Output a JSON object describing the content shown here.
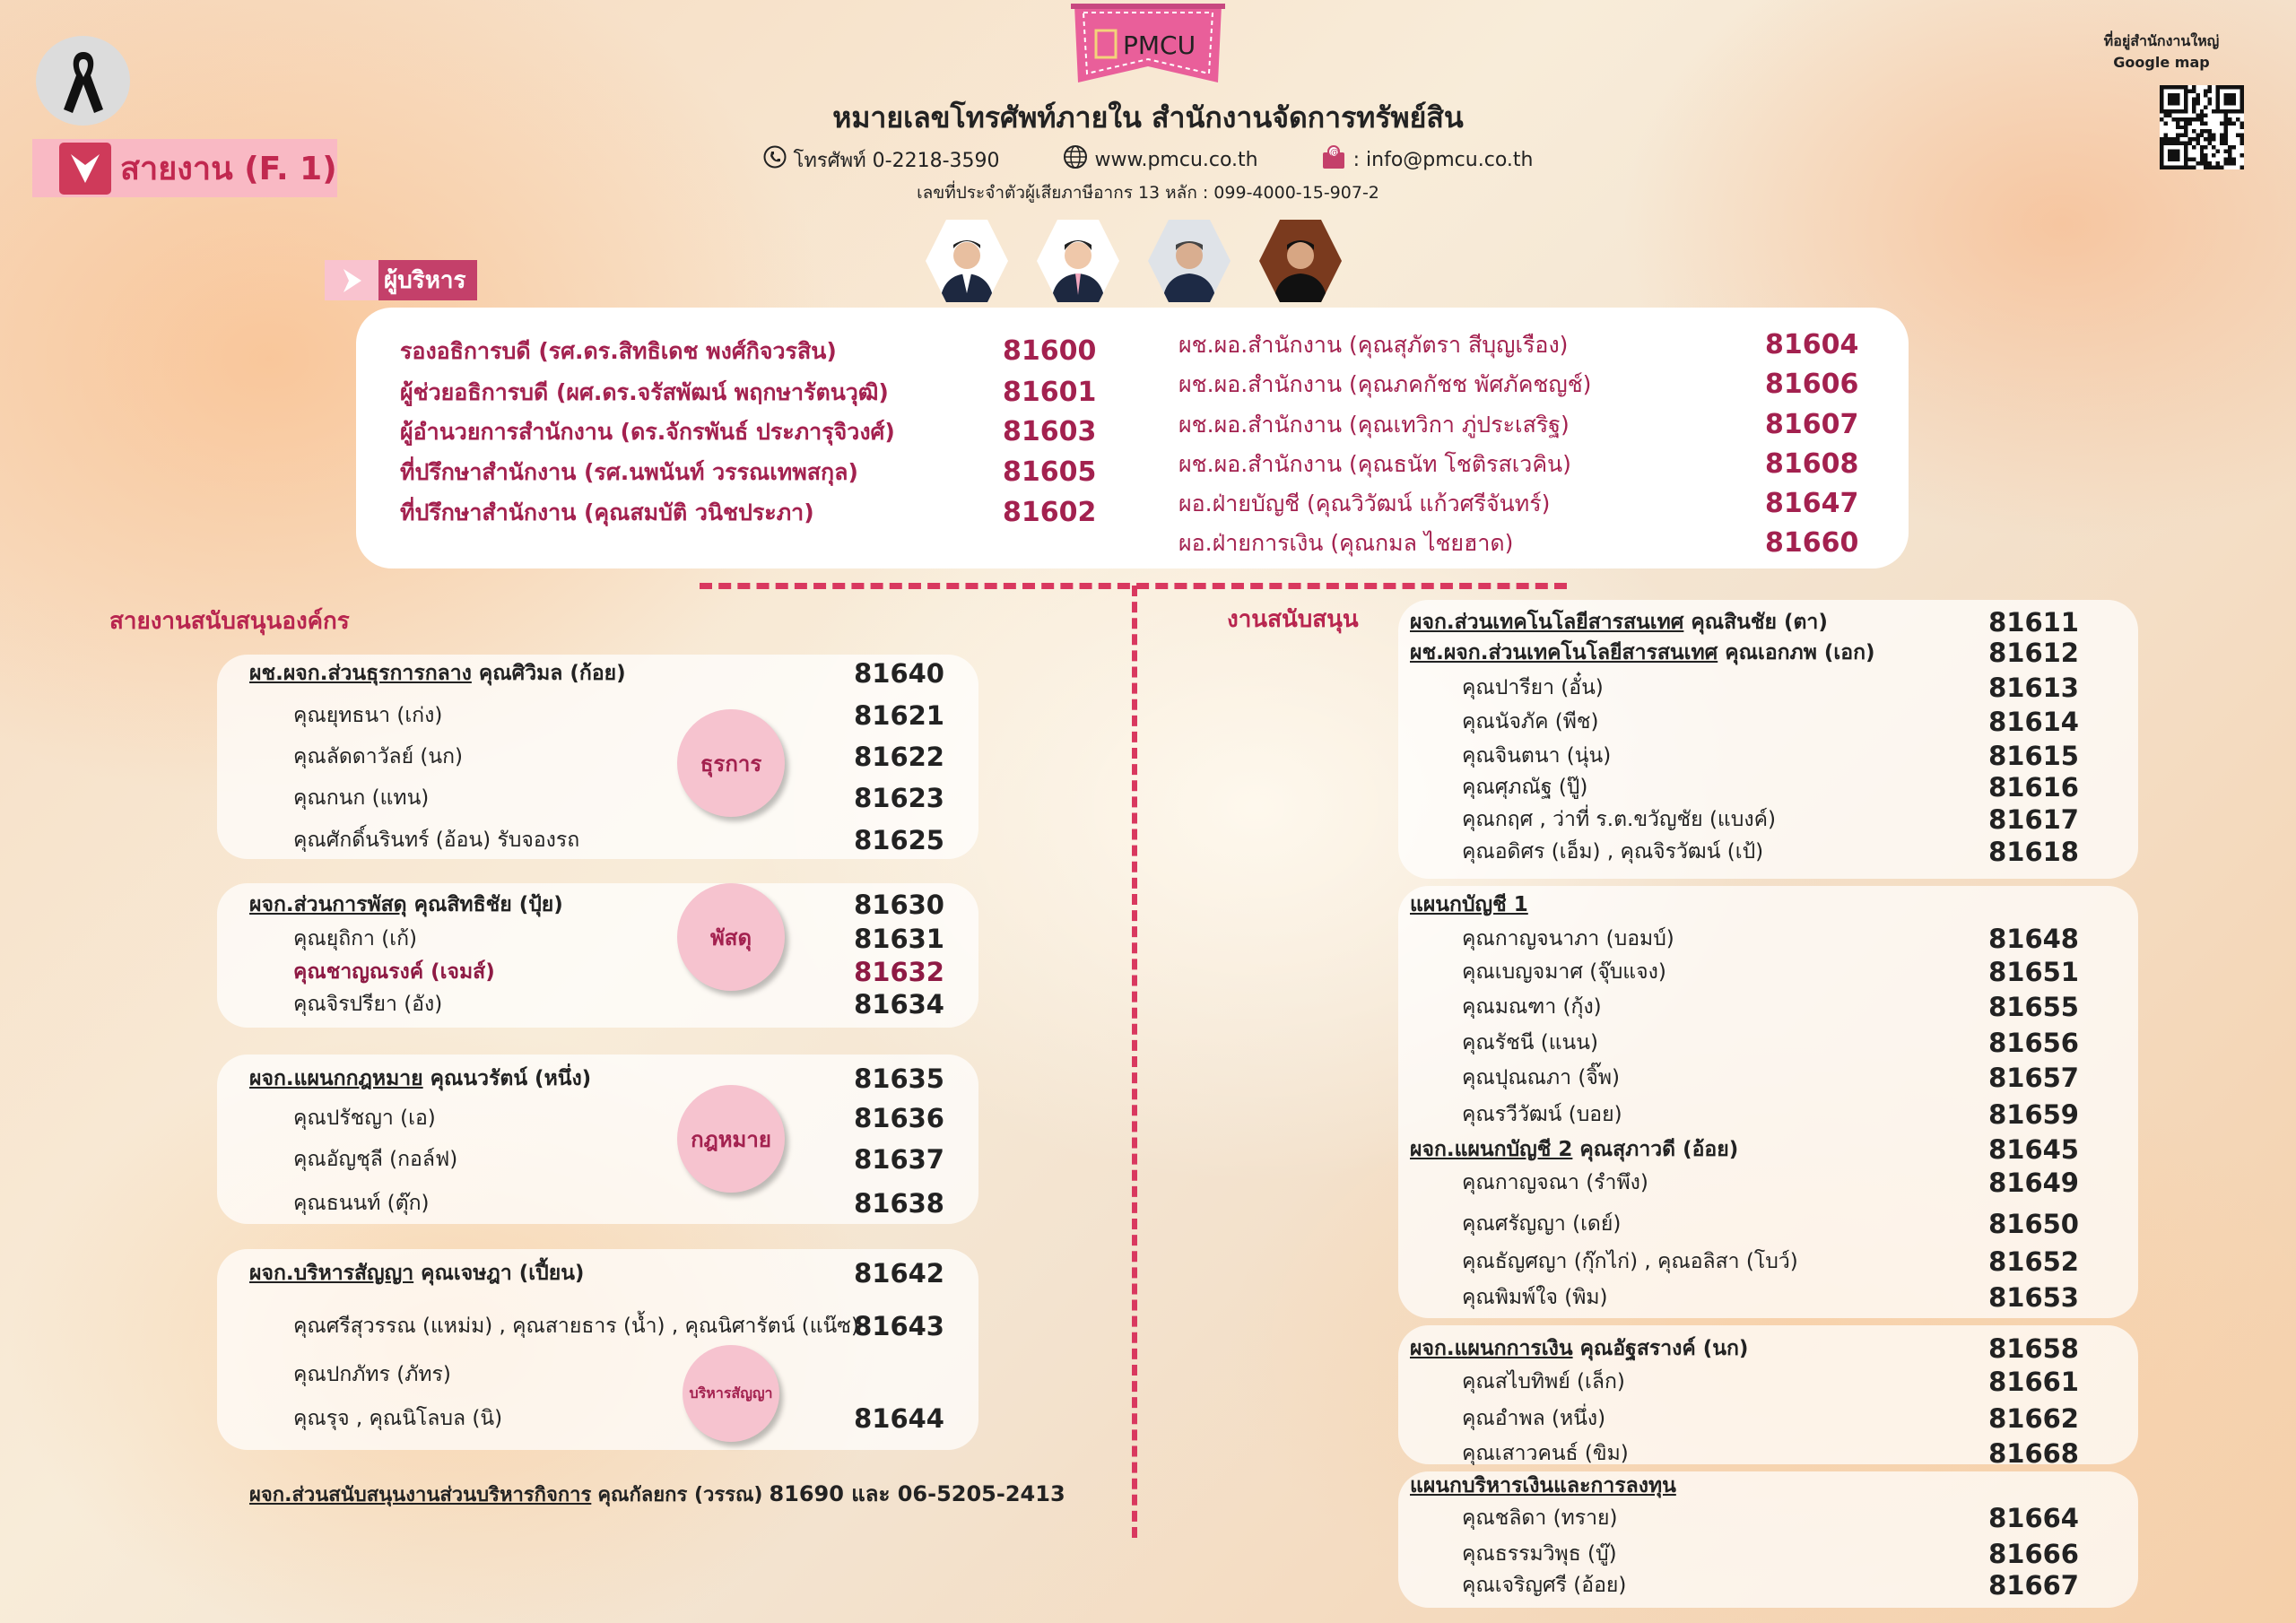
{
  "header": {
    "badge": "สายงาน (F. 1)",
    "logo": "PMCU",
    "title": "หมายเลขโทรศัพท์ภายใน สำนักงานจัดการทรัพย์สิน",
    "phone": "โทรศัพท์ 0-2218-3590",
    "website": "www.pmcu.co.th",
    "email": ": info@pmcu.co.th",
    "tax_id": "เลขที่ประจำตัวผู้เสียภาษีอากร 13 หลัก : 099-4000-15-907-2",
    "qr_label_1": "ที่อยู่สำนักงานใหญ่",
    "qr_label_2": "Google map",
    "icons": [
      "mourning-ribbon-icon",
      "chevron-down-icon",
      "phone-icon",
      "globe-icon",
      "email-icon",
      "qr-code"
    ],
    "colors": {
      "accent": "#a3214f",
      "pink": "#f6c3cf",
      "dash": "#d9385f"
    }
  },
  "executives": {
    "label": "ผู้บริหาร",
    "photo_count": 4,
    "left": [
      {
        "name": "รองอธิการบดี (รศ.ดร.สิทธิเดช พงศ์กิจวรสิน)",
        "ext": "81600"
      },
      {
        "name": "ผู้ช่วยอธิการบดี (ผศ.ดร.จรัสพัฒน์ พฤกษารัตนวุฒิ)",
        "ext": "81601"
      },
      {
        "name": "ผู้อำนวยการสำนักงาน (ดร.จักรพันธ์ ประภารุจิวงศ์)",
        "ext": "81603"
      },
      {
        "name": "ที่ปรึกษาสำนักงาน (รศ.นพนันท์ วรรณเทพสกุล)",
        "ext": "81605"
      },
      {
        "name": "ที่ปรึกษาสำนักงาน (คุณสมบัติ วนิชประภา)",
        "ext": "81602"
      }
    ],
    "right": [
      {
        "name": "ผช.ผอ.สำนักงาน (คุณสุภัตรา สีบุญเรือง)",
        "ext": "81604"
      },
      {
        "name": "ผช.ผอ.สำนักงาน (คุณภคกัชช พัศภัคชญช์)",
        "ext": "81606"
      },
      {
        "name": "ผช.ผอ.สำนักงาน (คุณเทวิกา ภู่ประเสริฐ)",
        "ext": "81607"
      },
      {
        "name": "ผช.ผอ.สำนักงาน (คุณธนัท โชติรสเวคิน)",
        "ext": "81608"
      },
      {
        "name": "ผอ.ฝ่ายบัญชี (คุณวิวัฒน์ แก้วศรีจันทร์)",
        "ext": "81647"
      },
      {
        "name": "ผอ.ฝ่ายการเงิน (คุณกมล ไชยฮาด)",
        "ext": "81660"
      }
    ]
  },
  "left_section": {
    "title": "สายงานสนับสนุนองค์กร",
    "groups": [
      {
        "circle": "ธุรการ",
        "rows": [
          {
            "type": "head",
            "unit": "ผช.ผจก.ส่วนธุรการกลาง",
            "name": "คุณศิวิมล (ก้อย)",
            "ext": "81640"
          },
          {
            "type": "sub",
            "name": "คุณยุทธนา (เก่ง)",
            "ext": "81621"
          },
          {
            "type": "sub",
            "name": "คุณลัดดาวัลย์ (นก)",
            "ext": "81622"
          },
          {
            "type": "sub",
            "name": "คุณกนก (แทน)",
            "ext": "81623"
          },
          {
            "type": "sub",
            "name": "คุณศักดิ์นรินทร์ (อ้อน) รับจองรถ",
            "ext": "81625"
          }
        ]
      },
      {
        "circle": "พัสดุ",
        "rows": [
          {
            "type": "head",
            "unit": "ผจก.ส่วนการพัสดุ",
            "name": "คุณสิทธิชัย (ปุ้ย)",
            "ext": "81630"
          },
          {
            "type": "sub",
            "name": "คุณยุถิกา (เก้)",
            "ext": "81631"
          },
          {
            "type": "sub",
            "name": "คุณชาญณรงค์ (เจมส์)",
            "ext": "81632",
            "highlight": true
          },
          {
            "type": "sub",
            "name": "คุณจิรปรียา (อัง)",
            "ext": "81634"
          }
        ]
      },
      {
        "circle": "กฎหมาย",
        "rows": [
          {
            "type": "head",
            "unit": "ผจก.แผนกกฎหมาย",
            "name": "คุณนวรัตน์ (หนึ่ง)",
            "ext": "81635"
          },
          {
            "type": "sub",
            "name": "คุณปรัชญา (เอ)",
            "ext": "81636"
          },
          {
            "type": "sub",
            "name": "คุณอัญชุลี (กอล์ฟ)",
            "ext": "81637"
          },
          {
            "type": "sub",
            "name": "คุณธนนท์ (ตุ๊ก)",
            "ext": "81638"
          }
        ]
      },
      {
        "circle": "บริหารสัญญา",
        "rows": [
          {
            "type": "head",
            "unit": "ผจก.บริหารสัญญา",
            "name": "คุณเจษฎา (เปี้ยน)",
            "ext": "81642"
          },
          {
            "type": "sub",
            "name": "คุณศรีสุวรรณ (แหม่ม) , คุณสายธาร (น้ำ) , คุณนิศารัตน์ (แน๊ซ)",
            "ext": "81643"
          },
          {
            "type": "sub",
            "name": "คุณปกภัทร (ภัทร)",
            "ext": ""
          },
          {
            "type": "sub",
            "name": "คุณรุจ , คุณนิโลบล (นิ)",
            "ext": "81644"
          }
        ]
      }
    ],
    "footer": {
      "unit": "ผจก.ส่วนสนับสนุนงานส่วนบริหารกิจการ",
      "name": "คุณกัลยกร (วรรณ)",
      "ext": "81690 และ 06-5205-2413"
    }
  },
  "right_section": {
    "title": "งานสนับสนุน",
    "groups": [
      {
        "rows": [
          {
            "type": "head",
            "unit": "ผจก.ส่วนเทคโนโลยีสารสนเทศ",
            "name": "คุณสินชัย (ตา)",
            "ext": "81611"
          },
          {
            "type": "head",
            "unit": "ผช.ผจก.ส่วนเทคโนโลยีสารสนเทศ",
            "name": "คุณเอกภพ (เอก)",
            "ext": "81612"
          },
          {
            "type": "sub",
            "name": "คุณปารียา (อั๋น)",
            "ext": "81613"
          },
          {
            "type": "sub",
            "name": "คุณนัจภัค (พีช)",
            "ext": "81614"
          },
          {
            "type": "sub",
            "name": "คุณจินตนา (นุ่น)",
            "ext": "81615"
          },
          {
            "type": "sub",
            "name": "คุณศุภณัฐ (ปู๊)",
            "ext": "81616"
          },
          {
            "type": "sub",
            "name": "คุณกฤศ ,  ว่าที่ ร.ต.ขวัญชัย (แบงค์)",
            "ext": "81617"
          },
          {
            "type": "sub",
            "name": "คุณอดิศร (เอ็ม) , คุณจิรวัฒน์ (เป้)",
            "ext": "81618"
          }
        ]
      },
      {
        "rows": [
          {
            "type": "head",
            "unit": "แผนกบัญชี 1",
            "name": "",
            "ext": ""
          },
          {
            "type": "sub",
            "name": "คุณกาญจนาภา (บอมบ์)",
            "ext": "81648"
          },
          {
            "type": "sub",
            "name": "คุณเบญจมาศ (จุ๊บแจง)",
            "ext": "81651"
          },
          {
            "type": "sub",
            "name": "คุณมณฑา (กุ้ง)",
            "ext": "81655"
          },
          {
            "type": "sub",
            "name": "คุณรัชนี (แนน)",
            "ext": "81656"
          },
          {
            "type": "sub",
            "name": "คุณปุณณภา (จิ๊พ)",
            "ext": "81657"
          },
          {
            "type": "sub",
            "name": "คุณรวีวัฒน์ (บอย)",
            "ext": "81659"
          },
          {
            "type": "head",
            "unit": "ผจก.แผนกบัญชี 2",
            "name": "คุณสุภาวดี (อ้อย)",
            "ext": "81645"
          },
          {
            "type": "sub",
            "name": "คุณกาญจณา (รำพึง)",
            "ext": "81649"
          },
          {
            "type": "sub",
            "name": "คุณศรัญญา (เดย์)",
            "ext": "81650"
          },
          {
            "type": "sub",
            "name": "คุณธัญศญา (กุ๊กไก่) , คุณอลิสา (โบว์)",
            "ext": "81652"
          },
          {
            "type": "sub",
            "name": "คุณพิมพ์ใจ (พิม)",
            "ext": "81653"
          }
        ]
      },
      {
        "rows": [
          {
            "type": "head",
            "unit": "ผจก.แผนกการเงิน",
            "name": "คุณอัฐสรางค์ (นก)",
            "ext": "81658"
          },
          {
            "type": "sub",
            "name": "คุณสไบทิพย์ (เล็ก)",
            "ext": "81661"
          },
          {
            "type": "sub",
            "name": "คุณอำพล (หนึ่ง)",
            "ext": "81662"
          },
          {
            "type": "sub",
            "name": "คุณเสาวคนธ์ (ขิม)",
            "ext": "81668"
          }
        ]
      },
      {
        "rows": [
          {
            "type": "head",
            "unit": "แผนกบริหารเงินและการลงทุน",
            "name": "",
            "ext": ""
          },
          {
            "type": "sub",
            "name": "คุณชลิดา (ทราย)",
            "ext": "81664"
          },
          {
            "type": "sub",
            "name": "คุณธรรมวิพุธ (บู๊)",
            "ext": "81666"
          },
          {
            "type": "sub",
            "name": "คุณเจริญศรี (อ้อย)",
            "ext": "81667"
          }
        ]
      }
    ]
  }
}
